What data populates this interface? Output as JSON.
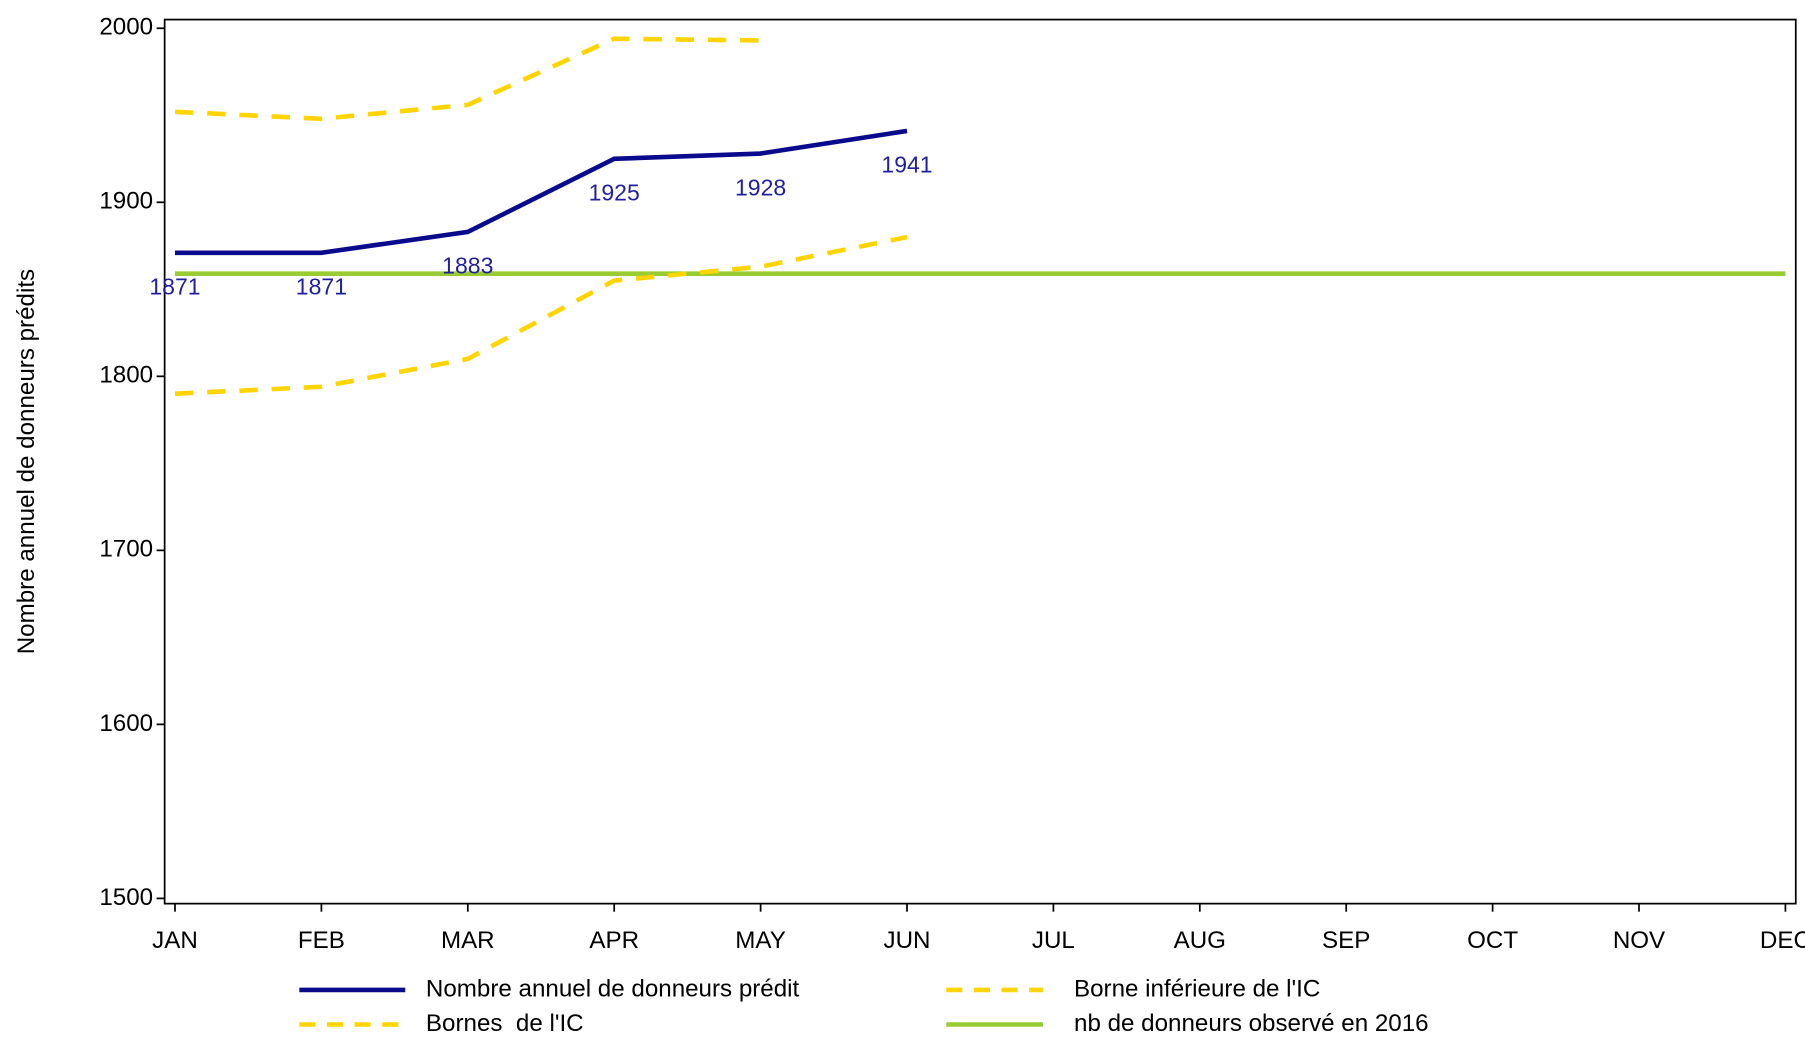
{
  "chart_data": {
    "type": "line",
    "y_label": "Nombre annuel de donneurs prédits",
    "categories": [
      "JAN",
      "FEB",
      "MAR",
      "APR",
      "MAY",
      "JUN",
      "JUL",
      "AUG",
      "SEP",
      "OCT",
      "NOV",
      "DEC"
    ],
    "series": [
      {
        "name": "Nombre annuel de donneurs prédit",
        "color": "#0a0a8c",
        "dashed": false,
        "show_labels": true,
        "values": [
          1871,
          1871,
          1883,
          1925,
          1928,
          1941,
          null,
          null,
          null,
          null,
          null,
          null
        ]
      },
      {
        "name": "Borne inférieure de l'IC",
        "color": "#ffd400",
        "dashed": true,
        "show_labels": false,
        "values": [
          1790,
          1794,
          1810,
          1855,
          1863,
          1880,
          null,
          null,
          null,
          null,
          null,
          null
        ]
      },
      {
        "name": "Bornes  de l'IC",
        "color": "#ffd400",
        "dashed": true,
        "show_labels": false,
        "values": [
          1952,
          1948,
          1956,
          1994,
          1993,
          null,
          null,
          null,
          null,
          null,
          null,
          null
        ]
      },
      {
        "name": "nb de donneurs observé en 2016",
        "color": "#99cc33",
        "dashed": false,
        "show_labels": false,
        "values": [
          1859,
          1859,
          1859,
          1859,
          1859,
          1859,
          1859,
          1859,
          1859,
          1859,
          1859,
          1859
        ]
      }
    ],
    "ylim": [
      1497,
      2005
    ],
    "yticks": [
      1500,
      1600,
      1700,
      1800,
      1900,
      2000
    ],
    "grid": false
  }
}
